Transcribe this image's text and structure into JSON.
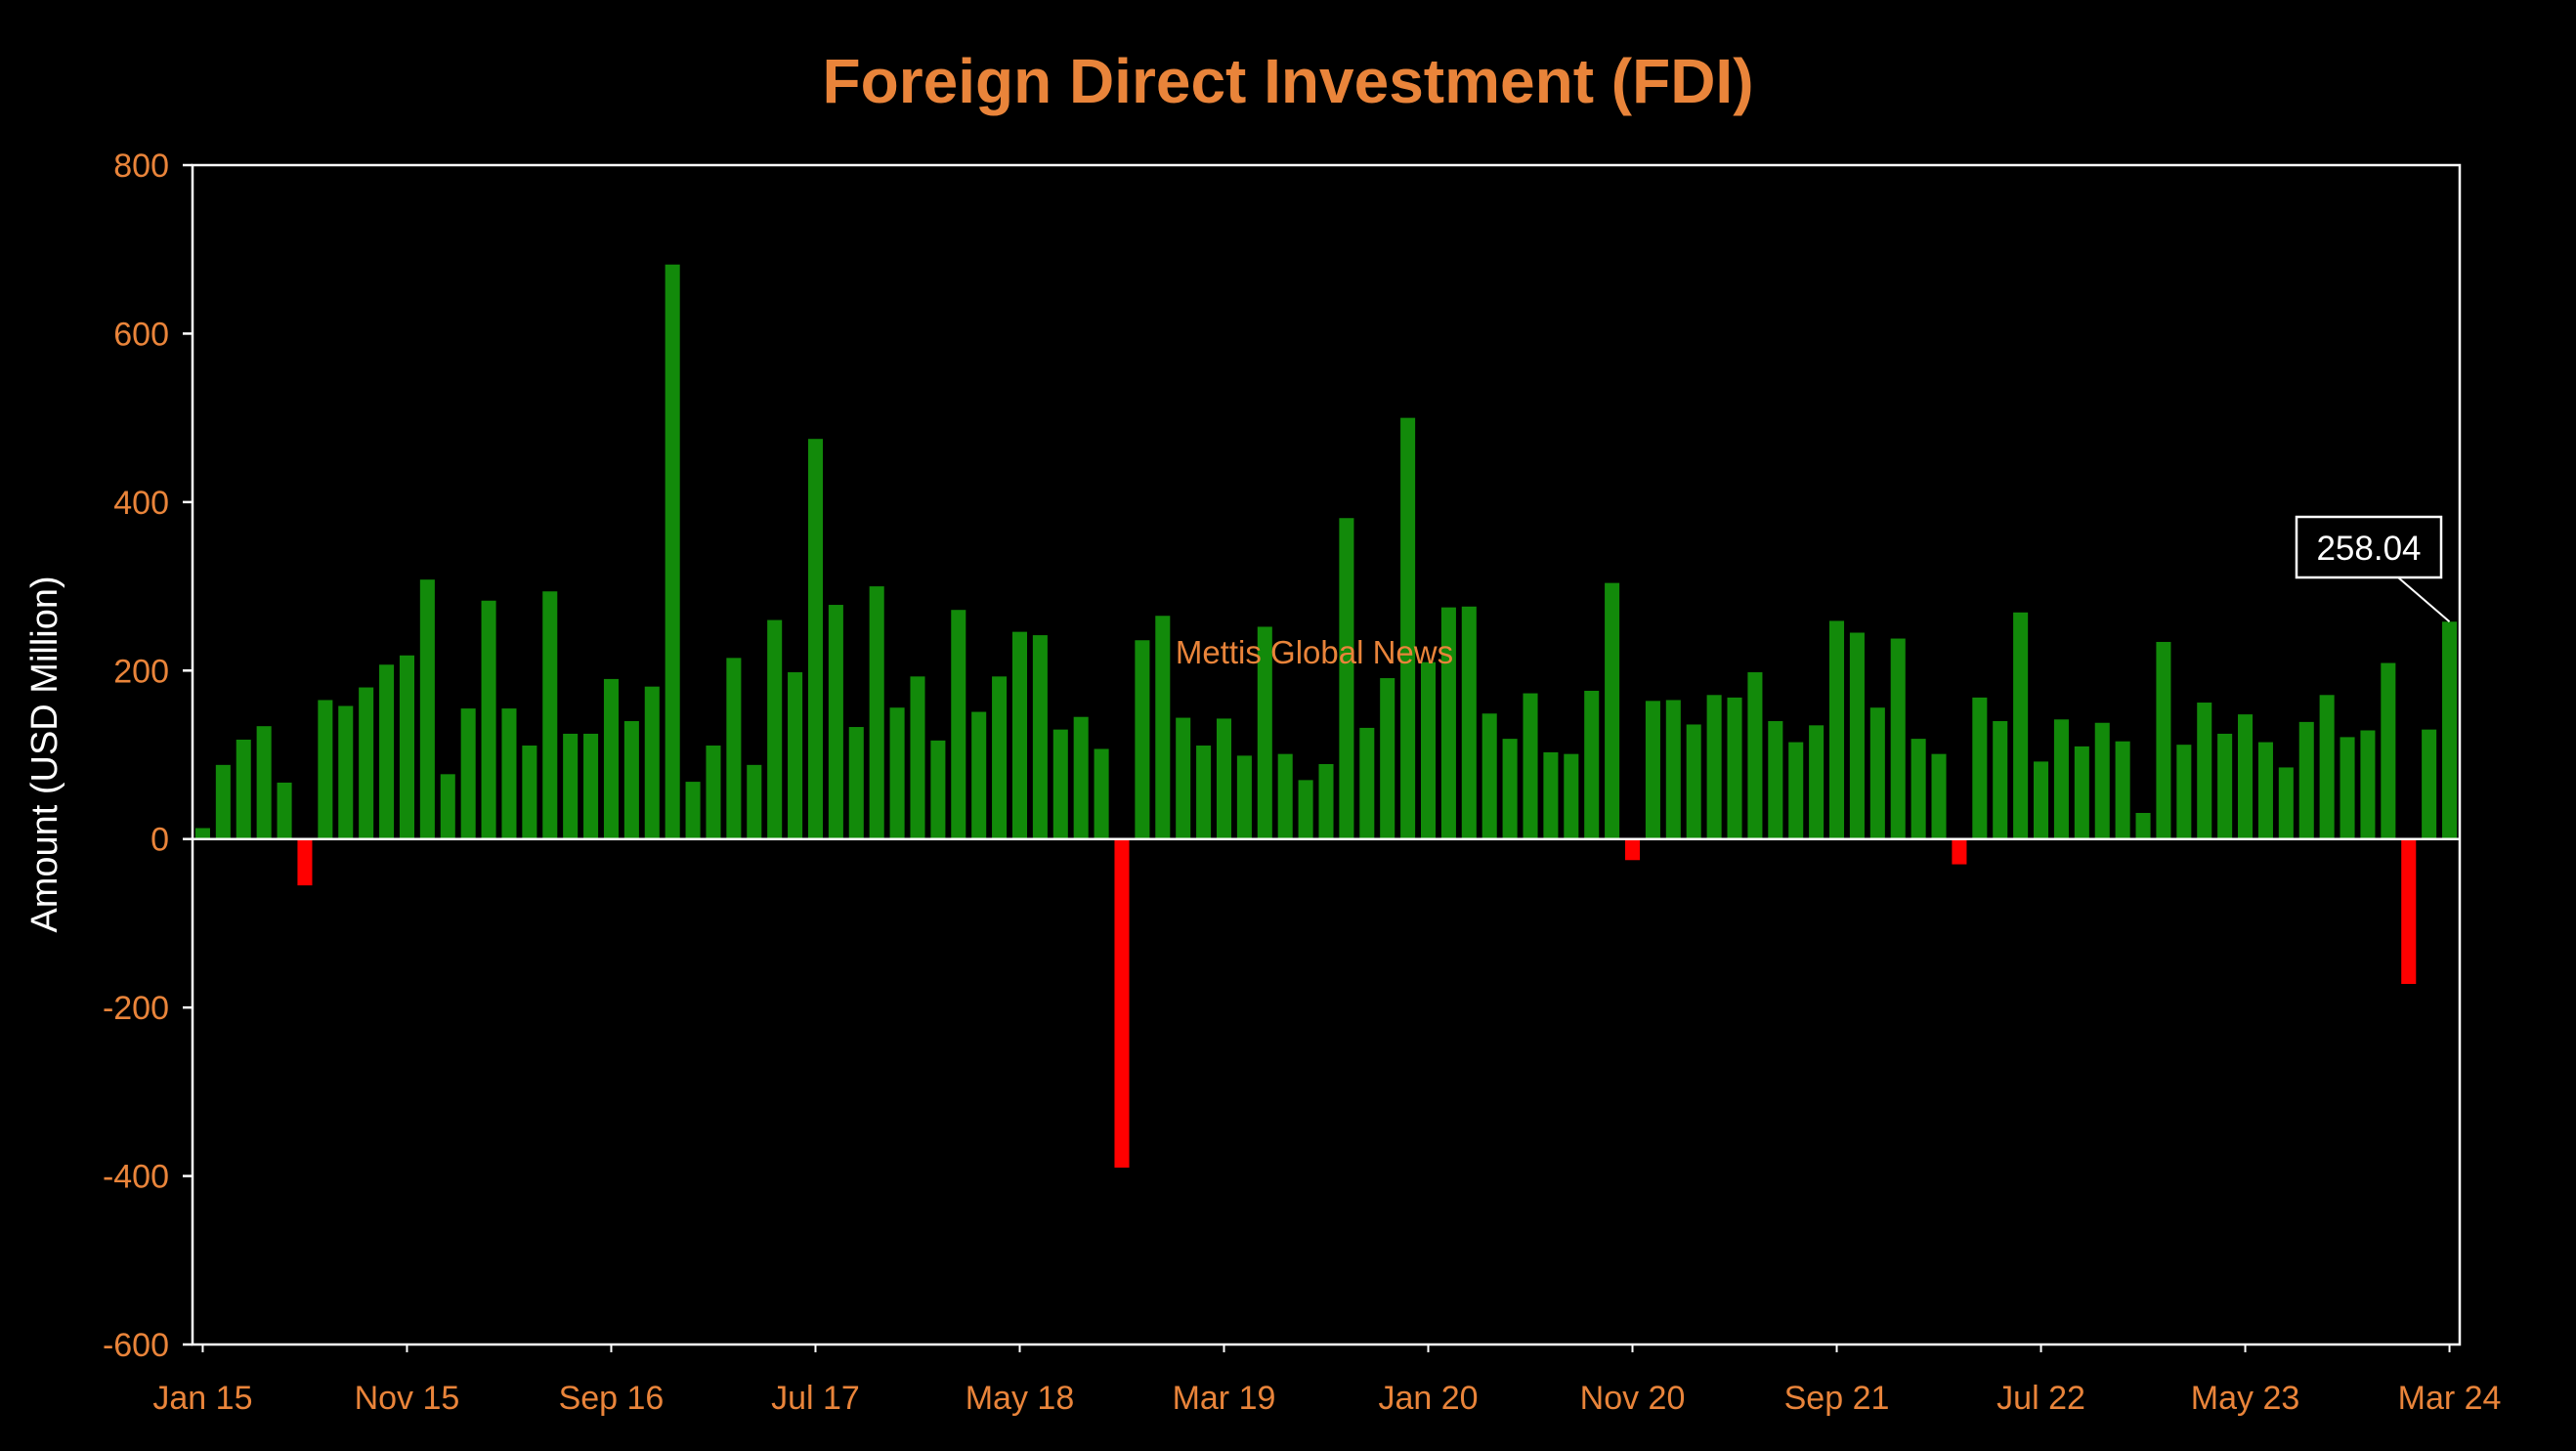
{
  "chart_data": {
    "type": "bar",
    "title": "Foreign Direct Investment (FDI)",
    "ylabel": "Amount (USD Million)",
    "xlabel": "",
    "ylim": [
      -600,
      800
    ],
    "yticks": [
      800,
      600,
      400,
      200,
      0,
      -200,
      -400,
      -600
    ],
    "xtick_labels": [
      "Jan 15",
      "Nov 15",
      "Sep 16",
      "Jul 17",
      "May 18",
      "Mar 19",
      "Jan 20",
      "Nov 20",
      "Sep 21",
      "Jul 22",
      "May 23",
      "Mar 24"
    ],
    "categories": [
      "Jan 15",
      "Feb 15",
      "Mar 15",
      "Apr 15",
      "May 15",
      "Jun 15",
      "Jul 15",
      "Aug 15",
      "Sep 15",
      "Oct 15",
      "Nov 15",
      "Dec 15",
      "Jan 16",
      "Feb 16",
      "Mar 16",
      "Apr 16",
      "May 16",
      "Jun 16",
      "Jul 16",
      "Aug 16",
      "Sep 16",
      "Oct 16",
      "Nov 16",
      "Dec 16",
      "Jan 17",
      "Feb 17",
      "Mar 17",
      "Apr 17",
      "May 17",
      "Jun 17",
      "Jul 17",
      "Aug 17",
      "Sep 17",
      "Oct 17",
      "Nov 17",
      "Dec 17",
      "Jan 18",
      "Feb 18",
      "Mar 18",
      "Apr 18",
      "May 18",
      "Jun 18",
      "Jul 18",
      "Aug 18",
      "Sep 18",
      "Oct 18",
      "Nov 18",
      "Dec 18",
      "Jan 19",
      "Feb 19",
      "Mar 19",
      "Apr 19",
      "May 19",
      "Jun 19",
      "Jul 19",
      "Aug 19",
      "Sep 19",
      "Oct 19",
      "Nov 19",
      "Dec 19",
      "Jan 20",
      "Feb 20",
      "Mar 20",
      "Apr 20",
      "May 20",
      "Jun 20",
      "Jul 20",
      "Aug 20",
      "Sep 20",
      "Oct 20",
      "Nov 20",
      "Dec 20",
      "Jan 21",
      "Feb 21",
      "Mar 21",
      "Apr 21",
      "May 21",
      "Jun 21",
      "Jul 21",
      "Aug 21",
      "Sep 21",
      "Oct 21",
      "Nov 21",
      "Dec 21",
      "Jan 22",
      "Feb 22",
      "Mar 22",
      "Apr 22",
      "May 22",
      "Jun 22",
      "Jul 22",
      "Aug 22",
      "Sep 22",
      "Oct 22",
      "Nov 22",
      "Dec 22",
      "Jan 23",
      "Feb 23",
      "Mar 23",
      "Apr 23",
      "May 23",
      "Jun 23",
      "Jul 23",
      "Aug 23",
      "Sep 23",
      "Oct 23",
      "Nov 23",
      "Dec 23",
      "Jan 24",
      "Feb 24",
      "Mar 24"
    ],
    "values": [
      13,
      88,
      118,
      134,
      67,
      -55,
      165,
      158,
      180,
      207,
      218,
      308,
      77,
      155,
      283,
      155,
      111,
      294,
      125,
      125,
      190,
      140,
      181,
      682,
      68,
      111,
      215,
      88,
      260,
      198,
      475,
      278,
      133,
      300,
      156,
      193,
      117,
      272,
      151,
      193,
      246,
      242,
      130,
      145,
      107,
      -390,
      236,
      265,
      144,
      111,
      143,
      99,
      252,
      101,
      70,
      89,
      381,
      132,
      191,
      500,
      210,
      275,
      276,
      149,
      119,
      173,
      103,
      101,
      176,
      304,
      -25,
      164,
      165,
      136,
      171,
      168,
      198,
      140,
      115,
      135,
      259,
      245,
      156,
      238,
      119,
      101,
      -30,
      168,
      140,
      269,
      92,
      142,
      110,
      138,
      116,
      31,
      234,
      112,
      162,
      125,
      148,
      115,
      85,
      139,
      171,
      121,
      129,
      209,
      -172,
      130,
      258.04
    ],
    "callout": {
      "label": "258.04",
      "category": "Mar 24"
    },
    "watermark": "Mettis Global News",
    "colors": {
      "positive": "#128a0a",
      "negative": "#ff0000",
      "title": "#e9843a",
      "tick_labels": "#e9843a",
      "axis": "#ffffff",
      "background": "#000000"
    },
    "grid": false,
    "legend": "none"
  }
}
